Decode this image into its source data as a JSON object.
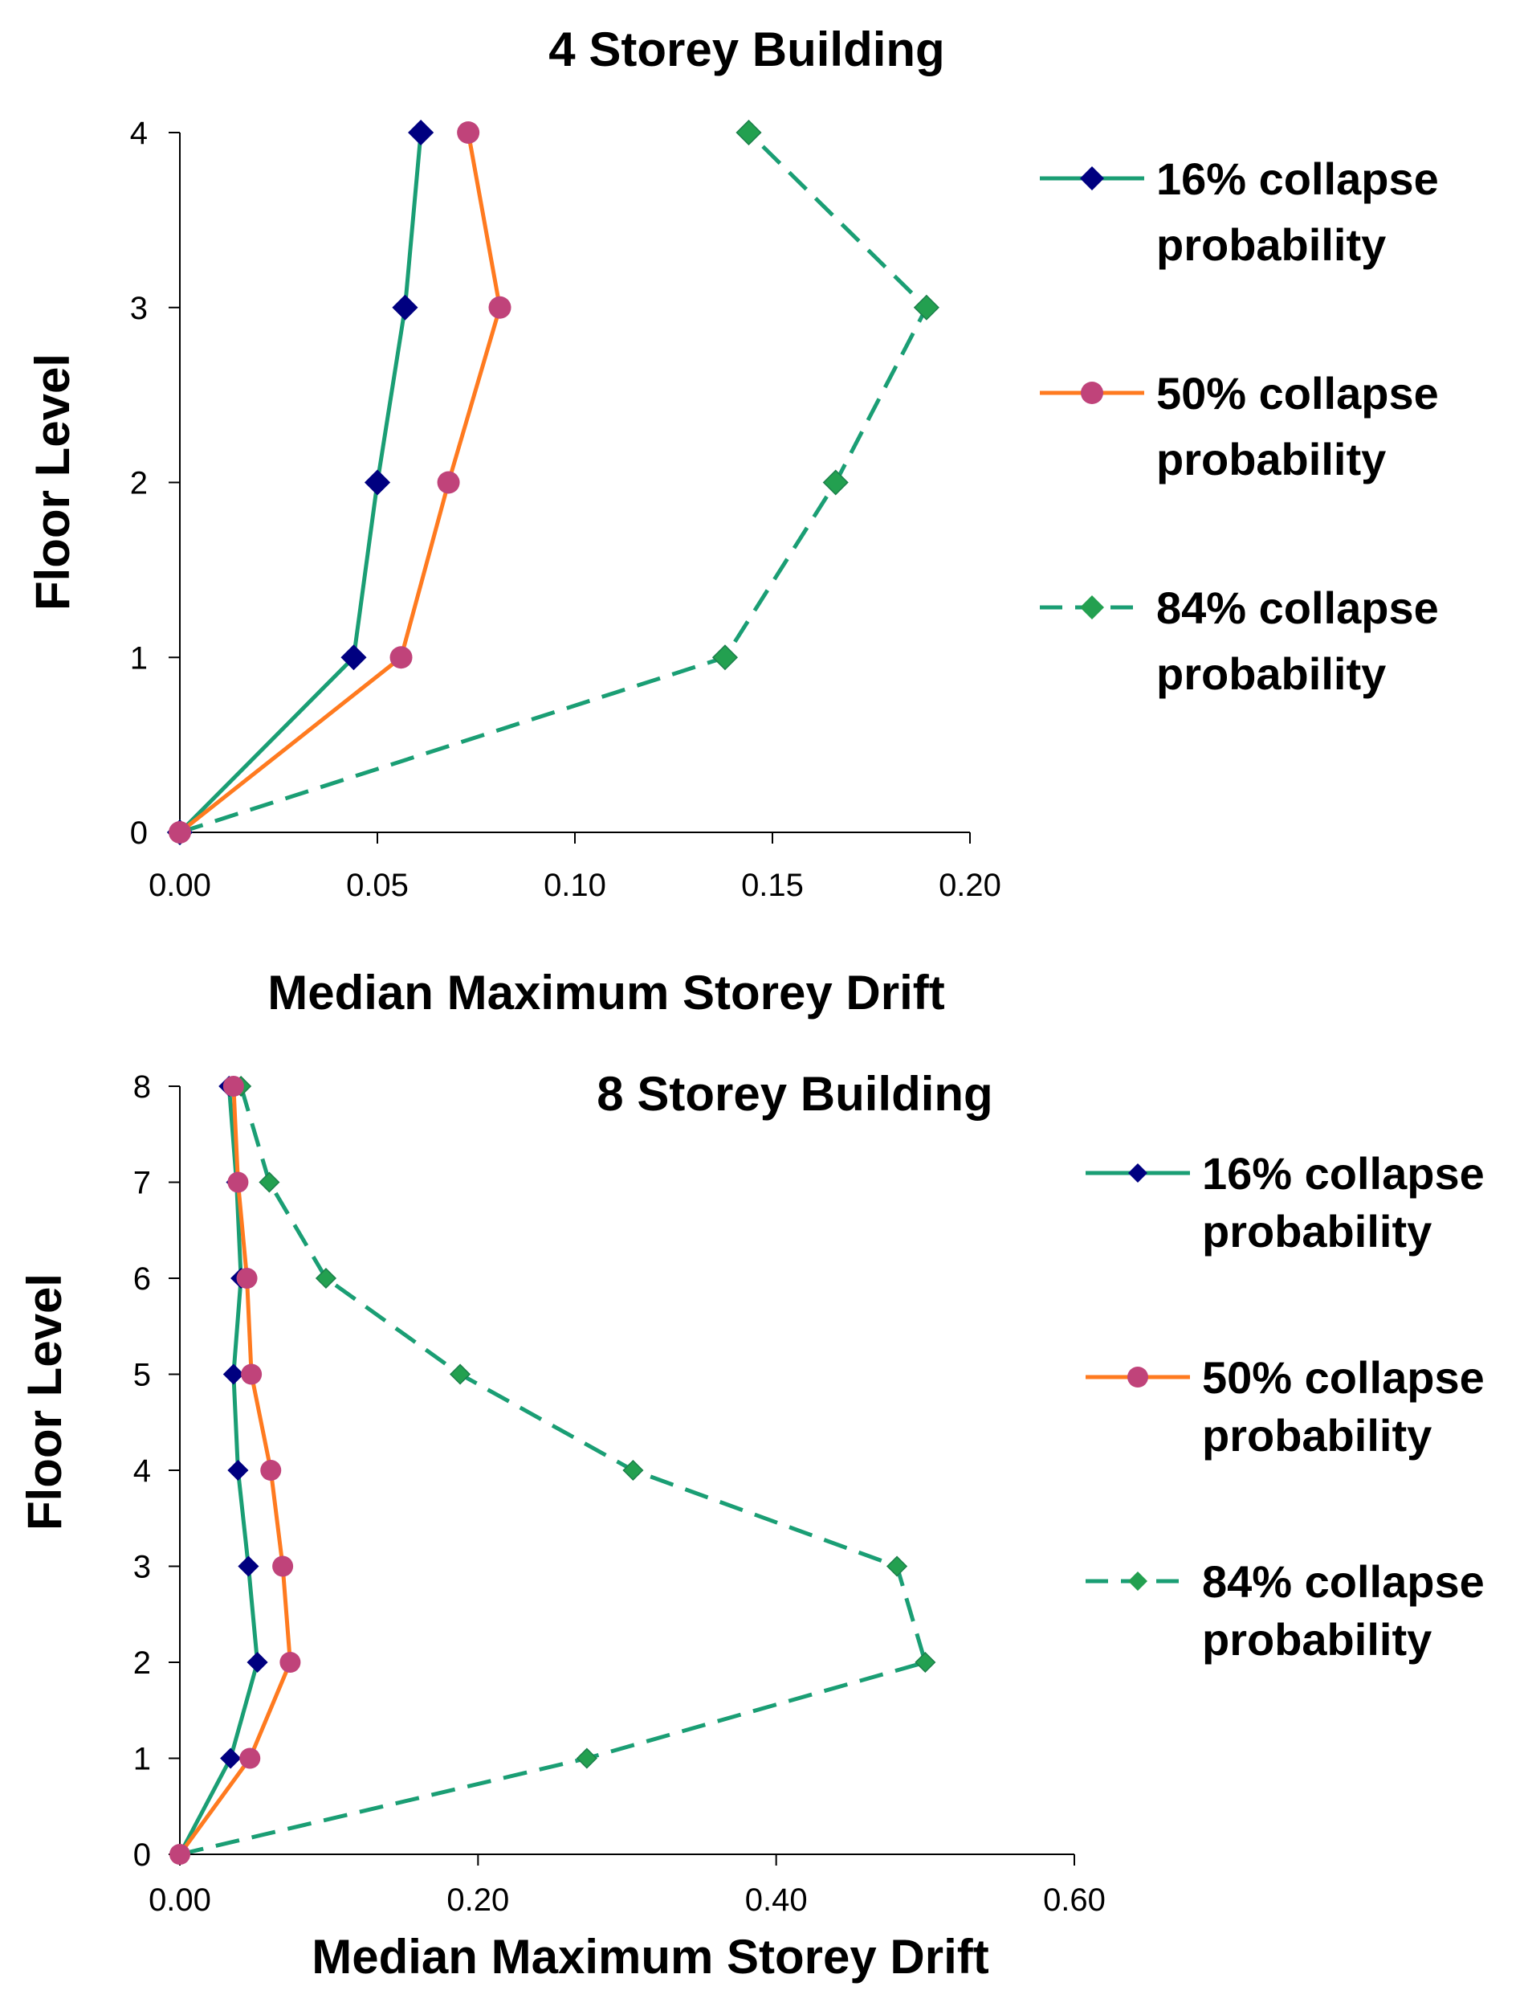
{
  "chart_data": [
    {
      "type": "line",
      "title": "4 Storey Building",
      "xlabel": "Median Maximum Storey  Drift",
      "ylabel": "Floor Level",
      "xlim": [
        0,
        0.2
      ],
      "ylim": [
        0,
        4
      ],
      "xticks": [
        "0.00",
        "0.05",
        "0.10",
        "0.15",
        "0.20"
      ],
      "yticks": [
        "0",
        "1",
        "2",
        "3",
        "4"
      ],
      "y": [
        0,
        1,
        2,
        3,
        4
      ],
      "legend_position": "right",
      "series": [
        {
          "name": "16% collapse probability",
          "legend_lines": [
            "16% collapse",
            "probability"
          ],
          "values": [
            0.0,
            0.044,
            0.05,
            0.057,
            0.061
          ],
          "line_color": "#1a9e74",
          "marker_color": "#000080",
          "marker": "diamond",
          "dash": "solid"
        },
        {
          "name": "50% collapse probability",
          "legend_lines": [
            "50% collapse",
            "probability"
          ],
          "values": [
            0.0,
            0.056,
            0.068,
            0.081,
            0.073
          ],
          "line_color": "#ff7a1f",
          "marker_color": "#c0437a",
          "marker": "circle",
          "dash": "solid"
        },
        {
          "name": "84% collapse probability",
          "legend_lines": [
            "84% collapse",
            "probability"
          ],
          "values": [
            0.0,
            0.138,
            0.166,
            0.189,
            0.144
          ],
          "line_color": "#1a9e74",
          "marker_color": "#23a050",
          "marker": "diamond",
          "dash": "dashed"
        }
      ]
    },
    {
      "type": "line",
      "title": "8 Storey Building",
      "xlabel": "Median Maximum Storey  Drift",
      "ylabel": "Floor Level",
      "xlim": [
        0,
        0.6
      ],
      "ylim": [
        0,
        8
      ],
      "xticks": [
        "0.00",
        "0.20",
        "0.40",
        "0.60"
      ],
      "yticks": [
        "0",
        "1",
        "2",
        "3",
        "4",
        "5",
        "6",
        "7",
        "8"
      ],
      "y": [
        0,
        1,
        2,
        3,
        4,
        5,
        6,
        7,
        8
      ],
      "legend_position": "right",
      "series": [
        {
          "name": "16% collapse probability",
          "legend_lines": [
            "16% collapse",
            "probability"
          ],
          "values": [
            0.0,
            0.034,
            0.052,
            0.046,
            0.039,
            0.036,
            0.041,
            0.038,
            0.033
          ],
          "line_color": "#1a9e74",
          "marker_color": "#000080",
          "marker": "diamond",
          "dash": "solid"
        },
        {
          "name": "50% collapse probability",
          "legend_lines": [
            "50% collapse",
            "probability"
          ],
          "values": [
            0.0,
            0.047,
            0.074,
            0.069,
            0.061,
            0.048,
            0.045,
            0.039,
            0.036
          ],
          "line_color": "#ff7a1f",
          "marker_color": "#c0437a",
          "marker": "circle",
          "dash": "solid"
        },
        {
          "name": "84% collapse probability",
          "legend_lines": [
            "84% collapse",
            "probability"
          ],
          "values": [
            0.0,
            0.273,
            0.5,
            0.481,
            0.304,
            0.188,
            0.098,
            0.06,
            0.041
          ],
          "line_color": "#1a9e74",
          "marker_color": "#23a050",
          "marker": "diamond",
          "dash": "dashed"
        }
      ]
    }
  ]
}
